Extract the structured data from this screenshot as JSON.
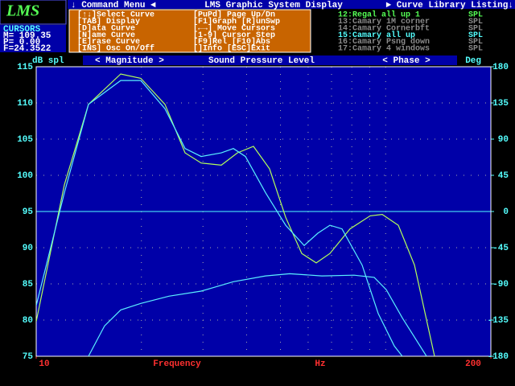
{
  "top_bar": {
    "left": "↓ Command Menu ◄",
    "center": "LMS Graphic System Display",
    "right": "► Curve Library Listing↓"
  },
  "logo": "LMS",
  "cursors": {
    "title": "CURSORS",
    "rows": [
      "M= 109.35",
      "P=   0.00",
      "F=24.3522"
    ]
  },
  "command_menu": [
    [
      "[↑↓]Select Curve",
      "[PuPd] Page Up/Dn"
    ],
    [
      "[TAB] Display",
      "[F1]Graph [R]unSwp"
    ],
    [
      "[D]ata  Curve",
      "[←→] Move Cursors"
    ],
    [
      "[N]ame  Curve",
      "[1-9] Cursor Step"
    ],
    [
      "[E]rase Curve",
      "[F9]Rel  [F10]Abs"
    ],
    [
      "[INS] Osc On/Off",
      "[]Info  [ESC]Exit"
    ]
  ],
  "curve_library": [
    {
      "label": "12:Regal all up 1",
      "kind": "SPL",
      "color": "#55ff55"
    },
    {
      "label": "13:Camary 1M corner",
      "kind": "SPL",
      "color": "#8a8a8a"
    },
    {
      "label": "14:Camary Cornerbft",
      "kind": "SPL",
      "color": "#8a8a8a"
    },
    {
      "label": "15:Camary all up",
      "kind": "SPL",
      "color": "#55ffff"
    },
    {
      "label": "16:Camary Psng down",
      "kind": "SPL",
      "color": "#8a8a8a"
    },
    {
      "label": "17:Camary 4 windows",
      "kind": "SPL",
      "color": "#8a8a8a"
    }
  ],
  "chart_data": {
    "type": "line",
    "ylabel": "dB spl",
    "y2label": "Deg",
    "header": {
      "left": "< Magnitude >",
      "center": "Sound Pressure Level",
      "right": "< Phase >"
    },
    "xlabel": "Frequency",
    "xunit": "Hz",
    "xlog": true,
    "xlim": [
      10,
      200
    ],
    "xticks": [
      10,
      200
    ],
    "xminor": [
      20,
      30,
      40,
      50,
      60,
      70,
      80,
      90,
      100
    ],
    "ylim": [
      75,
      115
    ],
    "yticks": [
      75,
      80,
      85,
      90,
      95,
      100,
      105,
      110,
      115
    ],
    "y2lim": [
      -180,
      180
    ],
    "y2ticks": [
      -180,
      -135,
      -90,
      -45,
      0,
      45,
      90,
      135,
      180
    ],
    "series": [
      {
        "name": "Regal all up 1",
        "color": "#b4ff5a",
        "x": [
          10,
          12.04,
          14.11,
          17.45,
          19.92,
          23.36,
          26.67,
          29.65,
          33.86,
          37.64,
          41.85,
          46.53,
          51.74,
          57.53,
          63.29,
          69.25,
          79.07,
          90.28,
          97.76,
          108.7,
          120.9,
          138.0
        ],
        "values": [
          79.8,
          98.7,
          109.8,
          114.0,
          113.4,
          109.8,
          103.1,
          101.7,
          101.4,
          103.1,
          104.0,
          100.9,
          94.2,
          89.2,
          87.9,
          89.2,
          92.6,
          94.4,
          94.6,
          93.1,
          87.6,
          75
        ]
      },
      {
        "name": "Camary all up",
        "color": "#5af0ff",
        "x": [
          10,
          12.04,
          14.11,
          17.45,
          19.92,
          23.36,
          26.67,
          29.65,
          33.86,
          36.66,
          39.69,
          45.31,
          51.74,
          58.45,
          63.96,
          69.25,
          74.99,
          85.62,
          95.21,
          105.9,
          111.6
        ],
        "values": [
          82,
          97.6,
          109.8,
          113.1,
          113.1,
          109.2,
          103.7,
          102.6,
          103.1,
          103.7,
          102.6,
          97.6,
          93.1,
          90.3,
          92,
          93.1,
          92.6,
          87.6,
          80.9,
          76.4,
          75
        ]
      },
      {
        "color": "#5af0ff",
        "x": [
          14.11,
          15.69,
          17.45,
          19.92,
          23.98,
          29.65,
          36.66,
          45.31,
          53.13,
          65.68,
          81.2,
          92.71,
          100.4,
          111.6,
          130.9
        ],
        "values": [
          75,
          79.2,
          81.4,
          82.3,
          83.3,
          84,
          85.3,
          86.1,
          86.4,
          86.1,
          86.2,
          85.9,
          84.2,
          80.3,
          75
        ]
      }
    ]
  }
}
